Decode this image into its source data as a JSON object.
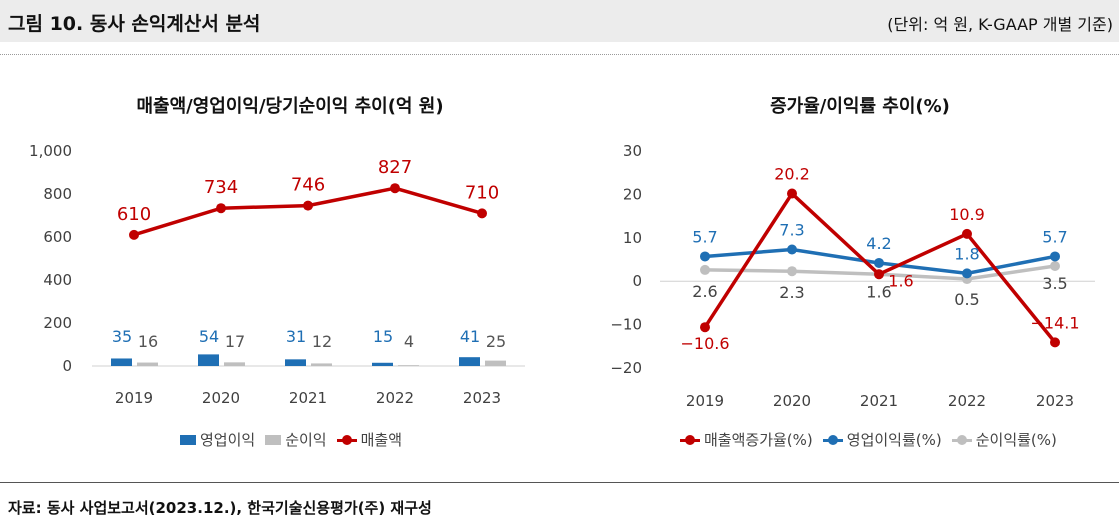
{
  "header": {
    "title": "그림 10. 동사 손익계산서 분석",
    "unit": "(단위: 억 원, K-GAAP 개별 기준)"
  },
  "footer": {
    "source": "자료: 동사 사업보고서(2023.12.), 한국기술신용평가(주) 재구성"
  },
  "colors": {
    "red": "#c00000",
    "blue": "#1f6fb4",
    "gray": "#bfbfbf",
    "axis_text": "#404040"
  },
  "chart_data": [
    {
      "type": "bar",
      "title": "매출액/영업이익/당기순이익 추이(억 원)",
      "categories": [
        "2019",
        "2020",
        "2021",
        "2022",
        "2023"
      ],
      "ylim": [
        0,
        1000
      ],
      "yticks": [
        0,
        200,
        400,
        600,
        800,
        1000
      ],
      "ytick_labels": [
        "0",
        "200",
        "400",
        "600",
        "800",
        "1,000"
      ],
      "grid": false,
      "legend_position": "bottom",
      "series": [
        {
          "name": "영업이익",
          "kind": "bar",
          "color": "#1f6fb4",
          "values": [
            35,
            54,
            31,
            15,
            41
          ]
        },
        {
          "name": "순이익",
          "kind": "bar",
          "color": "#bfbfbf",
          "values": [
            16,
            17,
            12,
            4,
            25
          ]
        },
        {
          "name": "매출액",
          "kind": "line",
          "color": "#c00000",
          "values": [
            610,
            734,
            746,
            827,
            710
          ]
        }
      ]
    },
    {
      "type": "line",
      "title": "증가율/이익률 추이(%)",
      "categories": [
        "2019",
        "2020",
        "2021",
        "2022",
        "2023"
      ],
      "ylim": [
        -20,
        30
      ],
      "yticks": [
        -20,
        -10,
        0,
        10,
        20,
        30
      ],
      "ytick_labels": [
        "−20",
        "−10",
        "0",
        "10",
        "20",
        "30"
      ],
      "grid": false,
      "legend_position": "bottom",
      "series": [
        {
          "name": "매출액증가율(%)",
          "color": "#c00000",
          "values": [
            -10.6,
            20.2,
            1.6,
            10.9,
            -14.1
          ],
          "labels": [
            "−10.6",
            "20.2",
            "1.6",
            "10.9",
            "−14.1"
          ]
        },
        {
          "name": "영업이익률(%)",
          "color": "#1f6fb4",
          "values": [
            5.7,
            7.3,
            4.2,
            1.8,
            5.7
          ],
          "labels": [
            "5.7",
            "7.3",
            "4.2",
            "1.8",
            "5.7"
          ]
        },
        {
          "name": "순이익률(%)",
          "color": "#bfbfbf",
          "values": [
            2.6,
            2.3,
            1.6,
            0.5,
            3.5
          ],
          "labels": [
            "2.6",
            "2.3",
            "1.6",
            "0.5",
            "3.5"
          ]
        }
      ]
    }
  ]
}
